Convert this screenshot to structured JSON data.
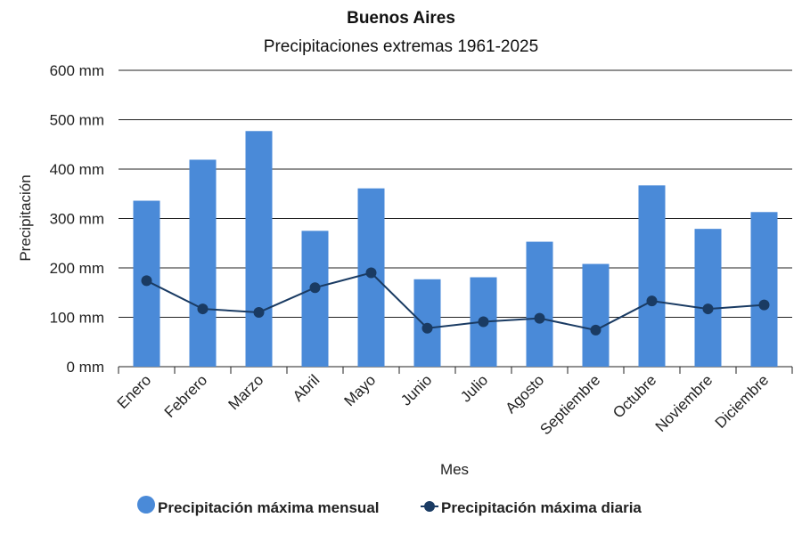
{
  "chart_data": {
    "type": "bar",
    "title": "Buenos Aires",
    "subtitle": "Precipitaciones extremas 1961-2025",
    "xlabel": "Mes",
    "ylabel": "Precipitación",
    "ylim": [
      0,
      600
    ],
    "yticks": [
      0,
      100,
      200,
      300,
      400,
      500,
      600
    ],
    "ytick_labels": [
      "0 mm",
      "100 mm",
      "200 mm",
      "300 mm",
      "400 mm",
      "500 mm",
      "600 mm"
    ],
    "grid": true,
    "legend_position": "bottom",
    "categories": [
      "Enero",
      "Febrero",
      "Marzo",
      "Abril",
      "Mayo",
      "Junio",
      "Julio",
      "Agosto",
      "Septiembre",
      "Octubre",
      "Noviembre",
      "Diciembre"
    ],
    "series": [
      {
        "name": "Precipitación máxima mensual",
        "type": "bar",
        "color": "#4a8ad8",
        "values": [
          336,
          419,
          477,
          275,
          361,
          177,
          181,
          253,
          208,
          367,
          279,
          313
        ]
      },
      {
        "name": "Precipitación máxima diaria",
        "type": "line",
        "color": "#1a3b63",
        "values": [
          174,
          117,
          110,
          160,
          190,
          78,
          91,
          98,
          74,
          133,
          117,
          125
        ]
      }
    ]
  }
}
